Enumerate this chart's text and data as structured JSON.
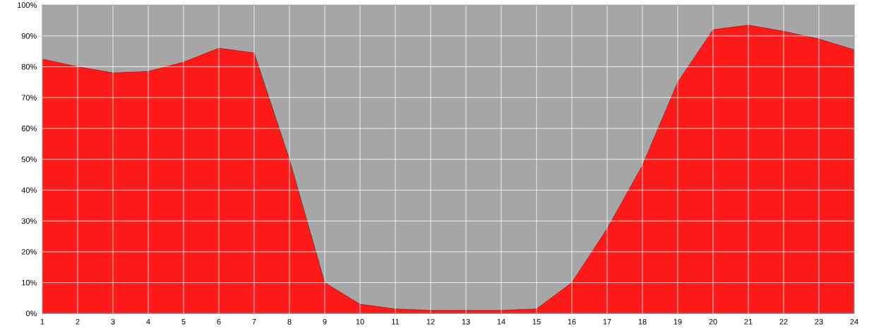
{
  "chart_data": {
    "type": "area",
    "x": [
      1,
      2,
      3,
      4,
      5,
      6,
      7,
      8,
      9,
      10,
      11,
      12,
      13,
      14,
      15,
      16,
      17,
      18,
      19,
      20,
      21,
      22,
      23,
      24
    ],
    "series": [
      {
        "color": "#ff1a1a",
        "values": [
          82.5,
          80,
          78,
          78.5,
          81.5,
          86,
          84.5,
          50,
          10,
          3,
          1.5,
          1,
          1,
          1,
          1.5,
          10,
          27.5,
          48,
          75,
          92,
          93.5,
          91.5,
          89,
          85.5
        ]
      }
    ],
    "xlim": [
      1,
      24
    ],
    "xticks": [
      1,
      2,
      3,
      4,
      5,
      6,
      7,
      8,
      9,
      10,
      11,
      12,
      13,
      14,
      15,
      16,
      17,
      18,
      19,
      20,
      21,
      22,
      23,
      24
    ],
    "ylim": [
      0,
      100
    ],
    "yticks": [
      {
        "value": 0,
        "label": "0%"
      },
      {
        "value": 10,
        "label": "10%"
      },
      {
        "value": 20,
        "label": "20%"
      },
      {
        "value": 30,
        "label": "30%"
      },
      {
        "value": 40,
        "label": "40%"
      },
      {
        "value": 50,
        "label": "50%"
      },
      {
        "value": 60,
        "label": "60%"
      },
      {
        "value": 70,
        "label": "70%"
      },
      {
        "value": 80,
        "label": "80%"
      },
      {
        "value": 90,
        "label": "90%"
      },
      {
        "value": 100,
        "label": "100%"
      }
    ],
    "grid": true
  }
}
